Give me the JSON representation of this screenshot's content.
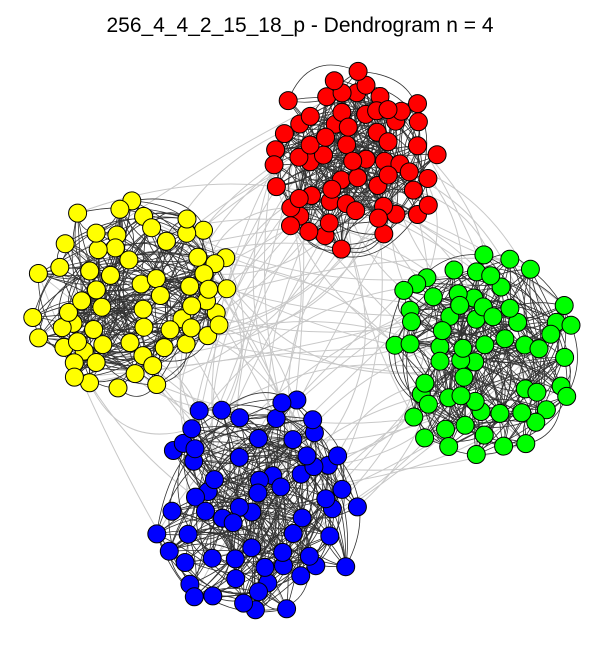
{
  "title": "256_4_4_2_15_18_p - Dendrogram n = 4",
  "colors": {
    "intra_edge": "#333333",
    "inter_edge": "#c8c8c8",
    "node_stroke": "#000000"
  },
  "clusters": [
    {
      "name": "red",
      "color": "#ff0000",
      "node_count": 64
    },
    {
      "name": "yellow",
      "color": "#ffff00",
      "node_count": 64
    },
    {
      "name": "green",
      "color": "#00ff00",
      "node_count": 64
    },
    {
      "name": "blue",
      "color": "#0000ff",
      "node_count": 64
    }
  ]
}
